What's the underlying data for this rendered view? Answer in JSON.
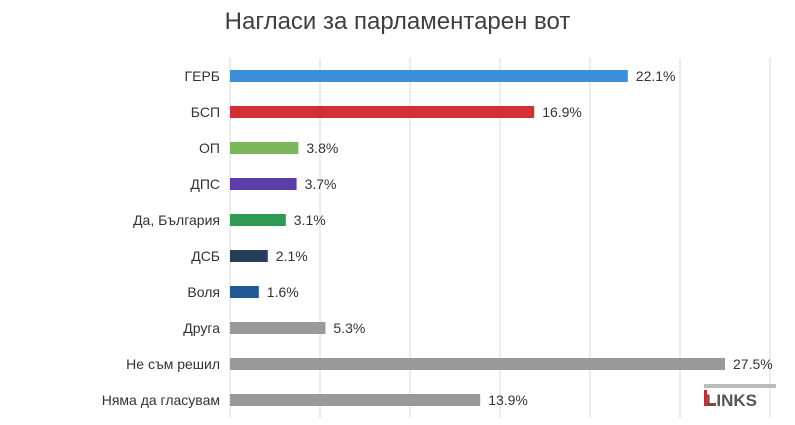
{
  "chart_data": {
    "type": "bar",
    "orientation": "horizontal",
    "title": "Нагласи за парламентарен вот",
    "categories": [
      "ГЕРБ",
      "БСП",
      "ОП",
      "ДПС",
      "Да, България",
      "ДСБ",
      "Воля",
      "Друга",
      "Не съм решил",
      "Няма да гласувам"
    ],
    "values": [
      22.1,
      16.9,
      3.8,
      3.7,
      3.1,
      2.1,
      1.6,
      5.3,
      27.5,
      13.9
    ],
    "value_labels": [
      "22.1%",
      "16.9%",
      "3.8%",
      "3.7%",
      "3.1%",
      "2.1%",
      "1.6%",
      "5.3%",
      "27.5%",
      "13.9%"
    ],
    "colors": [
      "#3a8fd6",
      "#d32f38",
      "#7cb85a",
      "#5c3ea8",
      "#2e9a52",
      "#26405c",
      "#1f5a96",
      "#999999",
      "#999999",
      "#999999"
    ],
    "xlim": [
      0,
      30
    ],
    "grid": true,
    "legend": "none"
  },
  "logo": {
    "text": "LINKS"
  }
}
